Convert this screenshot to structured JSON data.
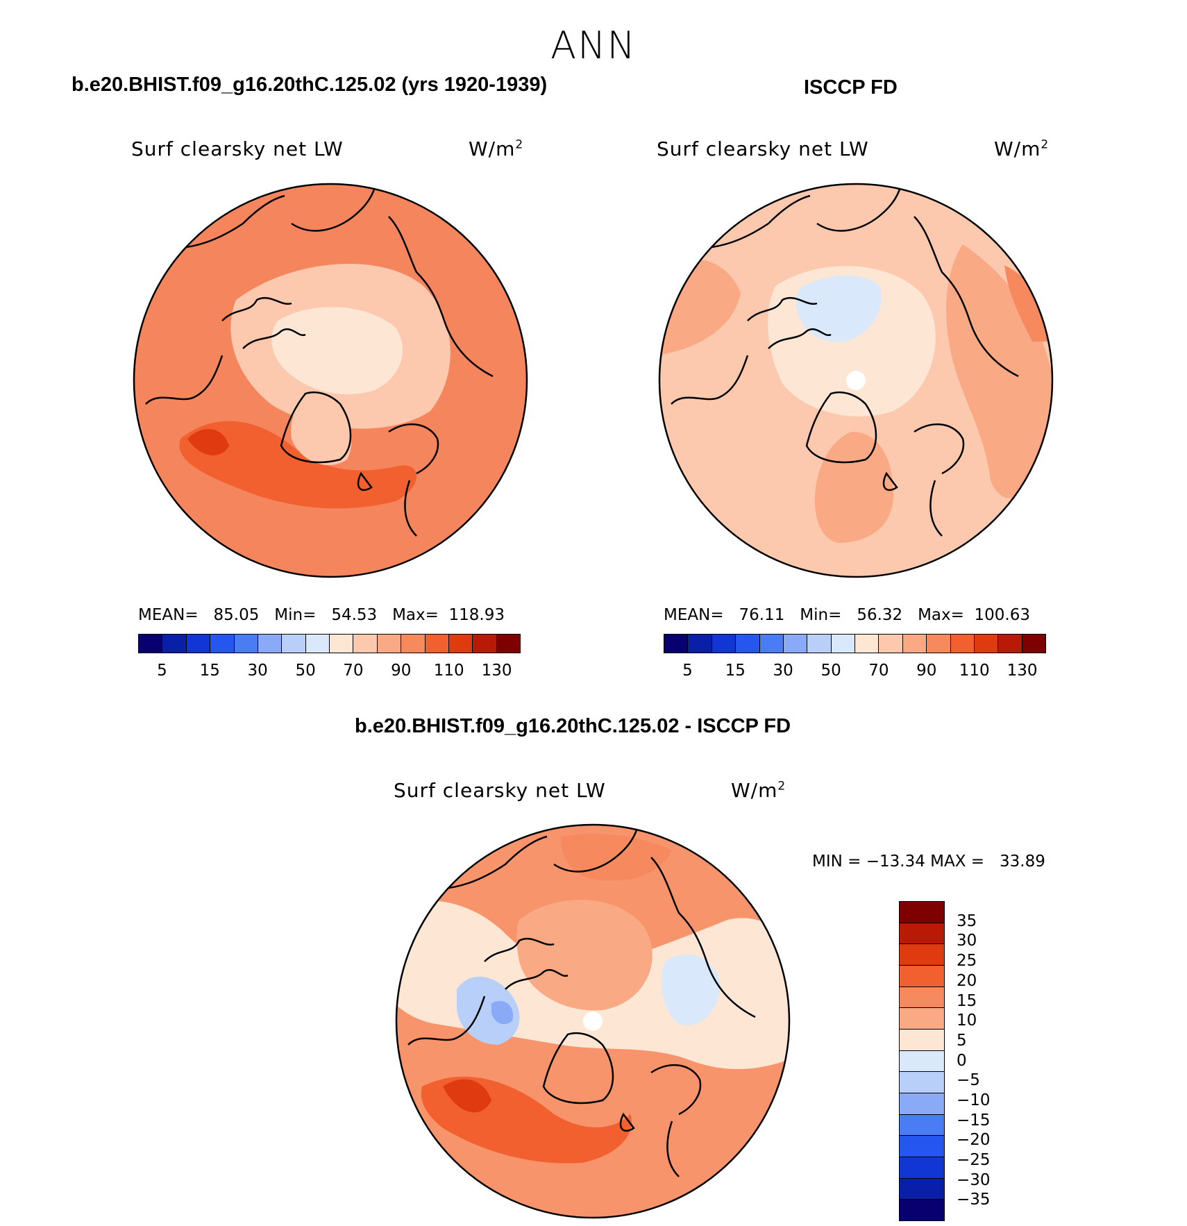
{
  "season": "ANN",
  "panels": [
    {
      "title": "b.e20.BHIST.f09_g16.20thC.125.02 (yrs 1920-1939)",
      "variable": "Surf clearsky net LW",
      "units_base": "W/m",
      "units_exp": "2",
      "stats": "MEAN=   85.05   Min=   54.53   Max=  118.93",
      "base_color": "#f5855c"
    },
    {
      "title": "ISCCP FD",
      "variable": "Surf clearsky net LW",
      "units_base": "W/m",
      "units_exp": "2",
      "stats": "MEAN=   76.11   Min=   56.32   Max=  100.63",
      "base_color": "#fcb596"
    }
  ],
  "diff_panel": {
    "title": "b.e20.BHIST.f09_g16.20thC.125.02 - ISCCP FD",
    "variable": "Surf clearsky net LW",
    "units_base": "W/m",
    "units_exp": "2",
    "minmax": "MIN = −13.34 MAX =   33.89",
    "base_color": "#f8946c"
  },
  "abs_colorbar": {
    "colors": [
      "#08006e",
      "#0a1fa8",
      "#1236d4",
      "#2557f0",
      "#4a7cf4",
      "#8aaaf8",
      "#b8cffa",
      "#d9e8fb",
      "#fde6d4",
      "#fcc8ae",
      "#f9a983",
      "#f7895e",
      "#f2602f",
      "#e03a10",
      "#b81a05",
      "#7f0000"
    ],
    "labels": [
      "5",
      "15",
      "30",
      "50",
      "70",
      "90",
      "110",
      "130"
    ]
  },
  "diff_colorbar": {
    "colors": [
      "#7f0000",
      "#b81a05",
      "#e03a10",
      "#f2602f",
      "#f7895e",
      "#f9a983",
      "#fde6d4",
      "#d9e8fb",
      "#b8cffa",
      "#8aaaf8",
      "#4a7cf4",
      "#2557f0",
      "#1236d4",
      "#0a1fa8",
      "#08006e"
    ],
    "labels": [
      "35",
      "30",
      "25",
      "20",
      "15",
      "10",
      "5",
      "0",
      "−5",
      "−10",
      "−15",
      "−20",
      "−25",
      "−30",
      "−35"
    ]
  }
}
